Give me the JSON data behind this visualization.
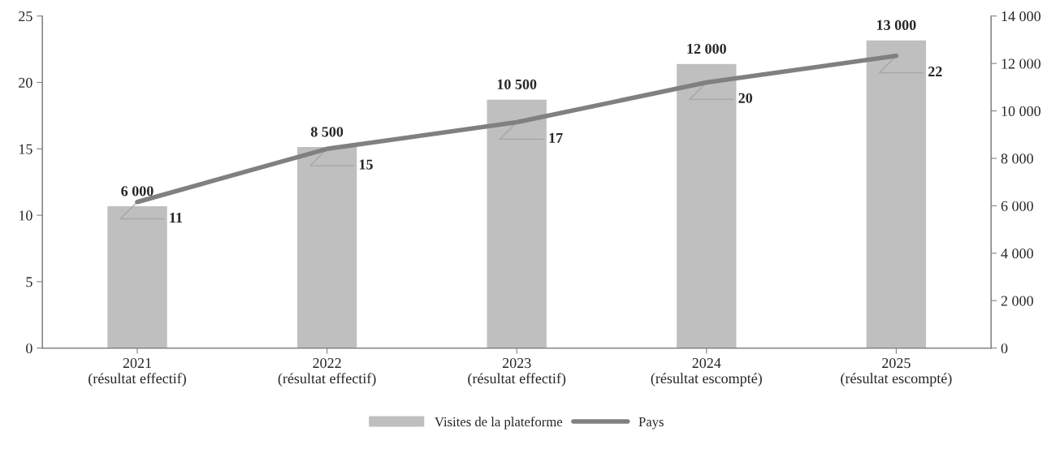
{
  "chart_data": {
    "type": "bar",
    "categories": [
      "2021\n(résultat effectif)",
      "2022\n(résultat effectif)",
      "2023\n(résultat effectif)",
      "2024\n(résultat escompté)",
      "2025\n(résultat escompté)"
    ],
    "series": [
      {
        "name": "Visites de la plateforme",
        "axis": "y2",
        "color": "#bfbfbf",
        "values": [
          6000,
          8500,
          10500,
          12000,
          13000
        ],
        "value_labels": [
          "6 000",
          "8 500",
          "10 500",
          "12 000",
          "13 000"
        ]
      },
      {
        "name": "Pays",
        "type": "line",
        "axis": "y",
        "color": "#808080",
        "values": [
          11,
          15,
          17,
          20,
          22
        ],
        "value_labels": [
          "11",
          "15",
          "17",
          "20",
          "22"
        ]
      }
    ],
    "ylim": [
      0,
      25
    ],
    "yticks": [
      0,
      5,
      10,
      15,
      20,
      25
    ],
    "y2lim": [
      0,
      14000
    ],
    "y2ticks": [
      {
        "value": 0,
        "label": "0"
      },
      {
        "value": 2000,
        "label": "2 000"
      },
      {
        "value": 4000,
        "label": "4 000"
      },
      {
        "value": 6000,
        "label": "6 000"
      },
      {
        "value": 8000,
        "label": "8 000"
      },
      {
        "value": 10000,
        "label": "10 000"
      },
      {
        "value": 12000,
        "label": "12 000"
      },
      {
        "value": 14000,
        "label": "14 000"
      }
    ],
    "grid": false,
    "legend": "bottom",
    "marker": "none",
    "line_style": "solid"
  }
}
